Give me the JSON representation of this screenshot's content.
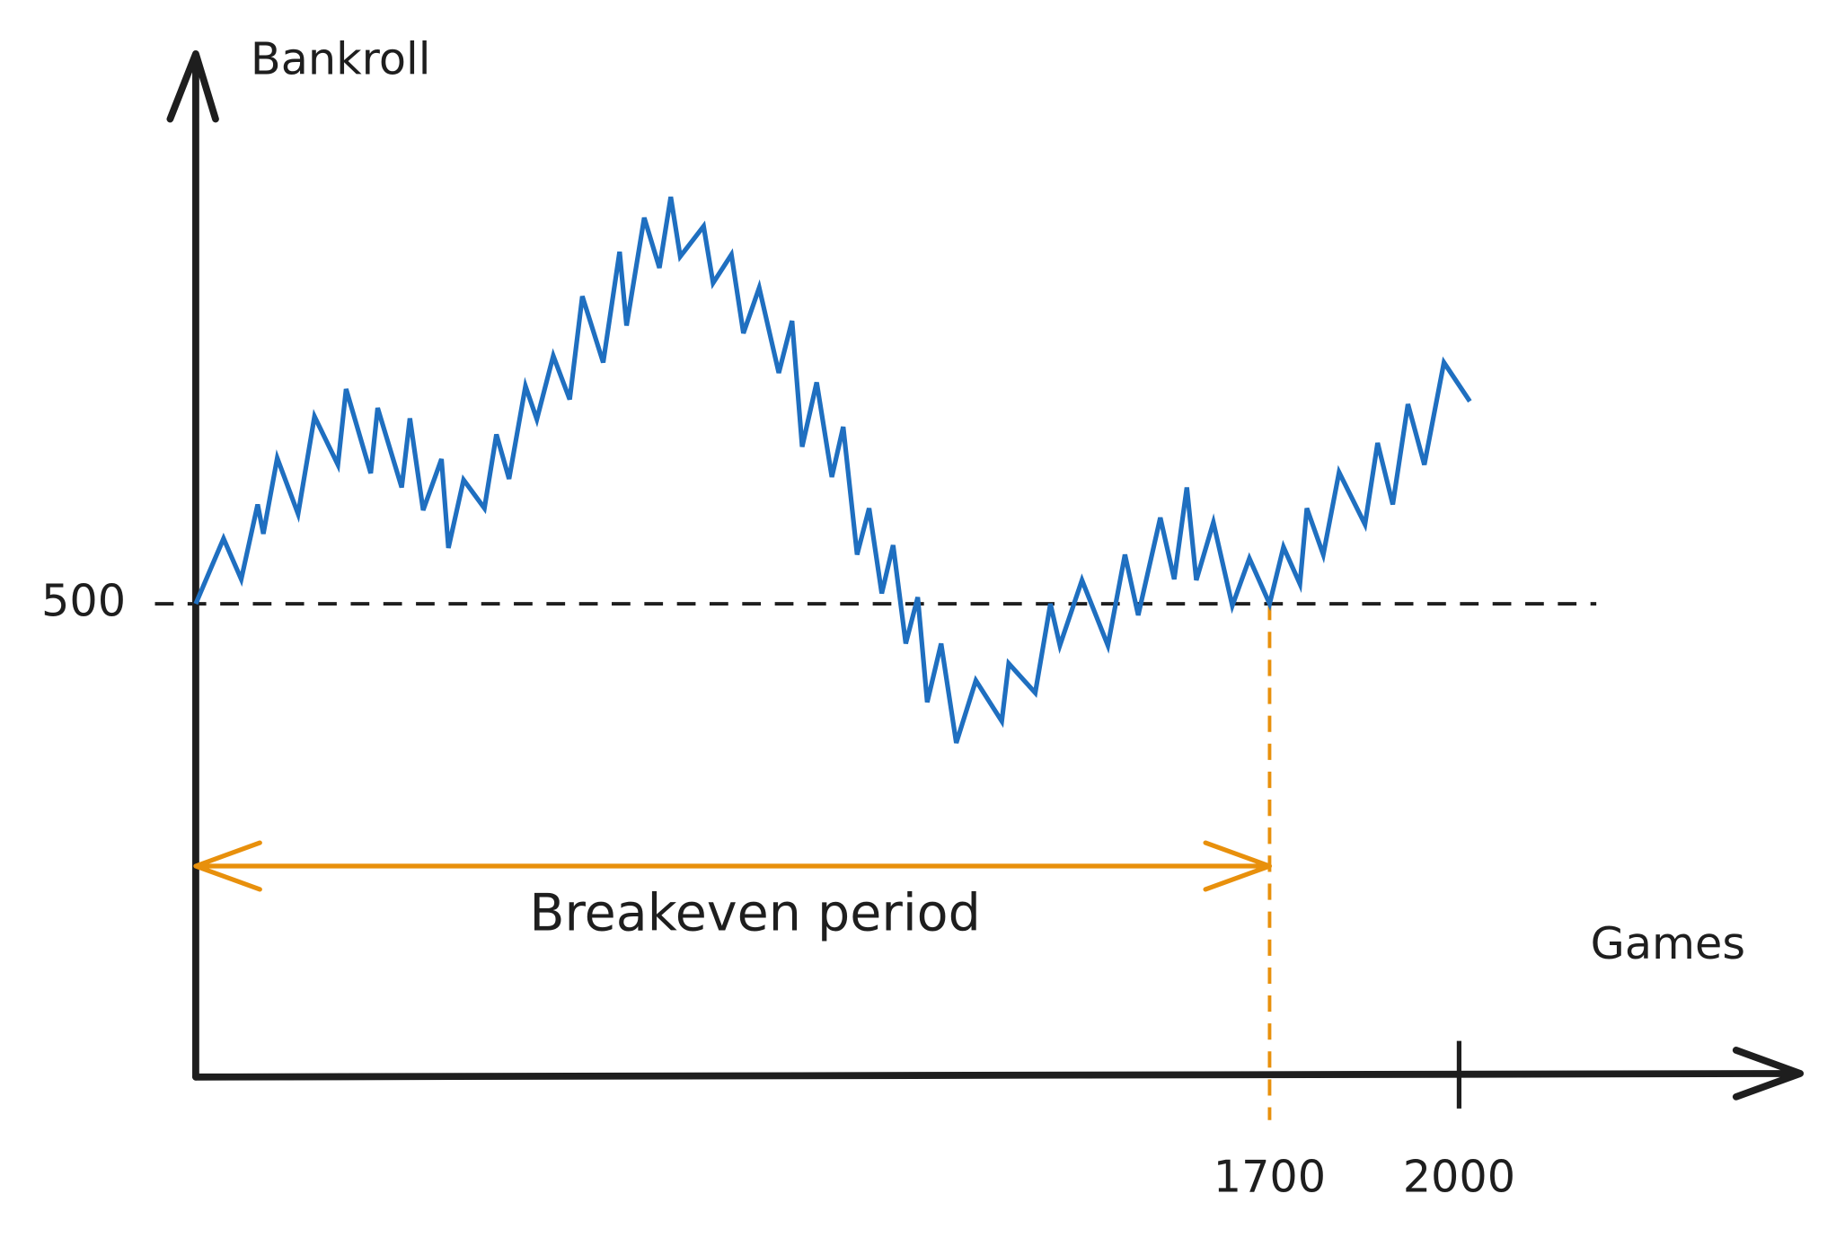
{
  "chart_data": {
    "type": "line",
    "y_label": "Bankroll",
    "x_label": "Games",
    "color": "#1f6fc0",
    "x": [
      0,
      44,
      72,
      98,
      107,
      129,
      162,
      188,
      225,
      238,
      277,
      288,
      326,
      339,
      360,
      389,
      400,
      424,
      457,
      476,
      496,
      522,
      540,
      566,
      592,
      612,
      645,
      671,
      682,
      710,
      734,
      752,
      767,
      804,
      819,
      848,
      867,
      892,
      923,
      944,
      960,
      983,
      1007,
      1025,
      1047,
      1066,
      1086,
      1104,
      1124,
      1143,
      1158,
      1180,
      1204,
      1235,
      1276,
      1287,
      1329,
      1353,
      1368,
      1403,
      1444,
      1471,
      1492,
      1527,
      1549,
      1569,
      1584,
      1611,
      1641,
      1668,
      1700,
      1722,
      1748,
      1759,
      1785,
      1810,
      1851,
      1871,
      1895,
      1919,
      1945,
      1976,
      2017
    ],
    "values": [
      500,
      569,
      526,
      605,
      574,
      654,
      595,
      698,
      647,
      727,
      638,
      707,
      623,
      696,
      599,
      653,
      559,
      631,
      601,
      679,
      632,
      730,
      695,
      762,
      716,
      825,
      755,
      872,
      794,
      908,
      855,
      930,
      867,
      899,
      839,
      869,
      786,
      834,
      744,
      799,
      666,
      734,
      634,
      687,
      552,
      601,
      511,
      562,
      458,
      507,
      396,
      458,
      353,
      419,
      376,
      437,
      406,
      500,
      456,
      525,
      456,
      552,
      488,
      591,
      526,
      623,
      525,
      586,
      498,
      548,
      500,
      560,
      521,
      601,
      552,
      639,
      584,
      670,
      605,
      711,
      647,
      755,
      714
    ],
    "xlim": [
      0,
      2540
    ],
    "ylim": [
      0,
      1080
    ],
    "xticks": [
      1700,
      2000
    ],
    "yticks": [
      500
    ],
    "grid": true,
    "annotation": {
      "text": "Breakeven period",
      "color": "#e8900c",
      "x_start": 0,
      "x_end": 1700
    }
  }
}
